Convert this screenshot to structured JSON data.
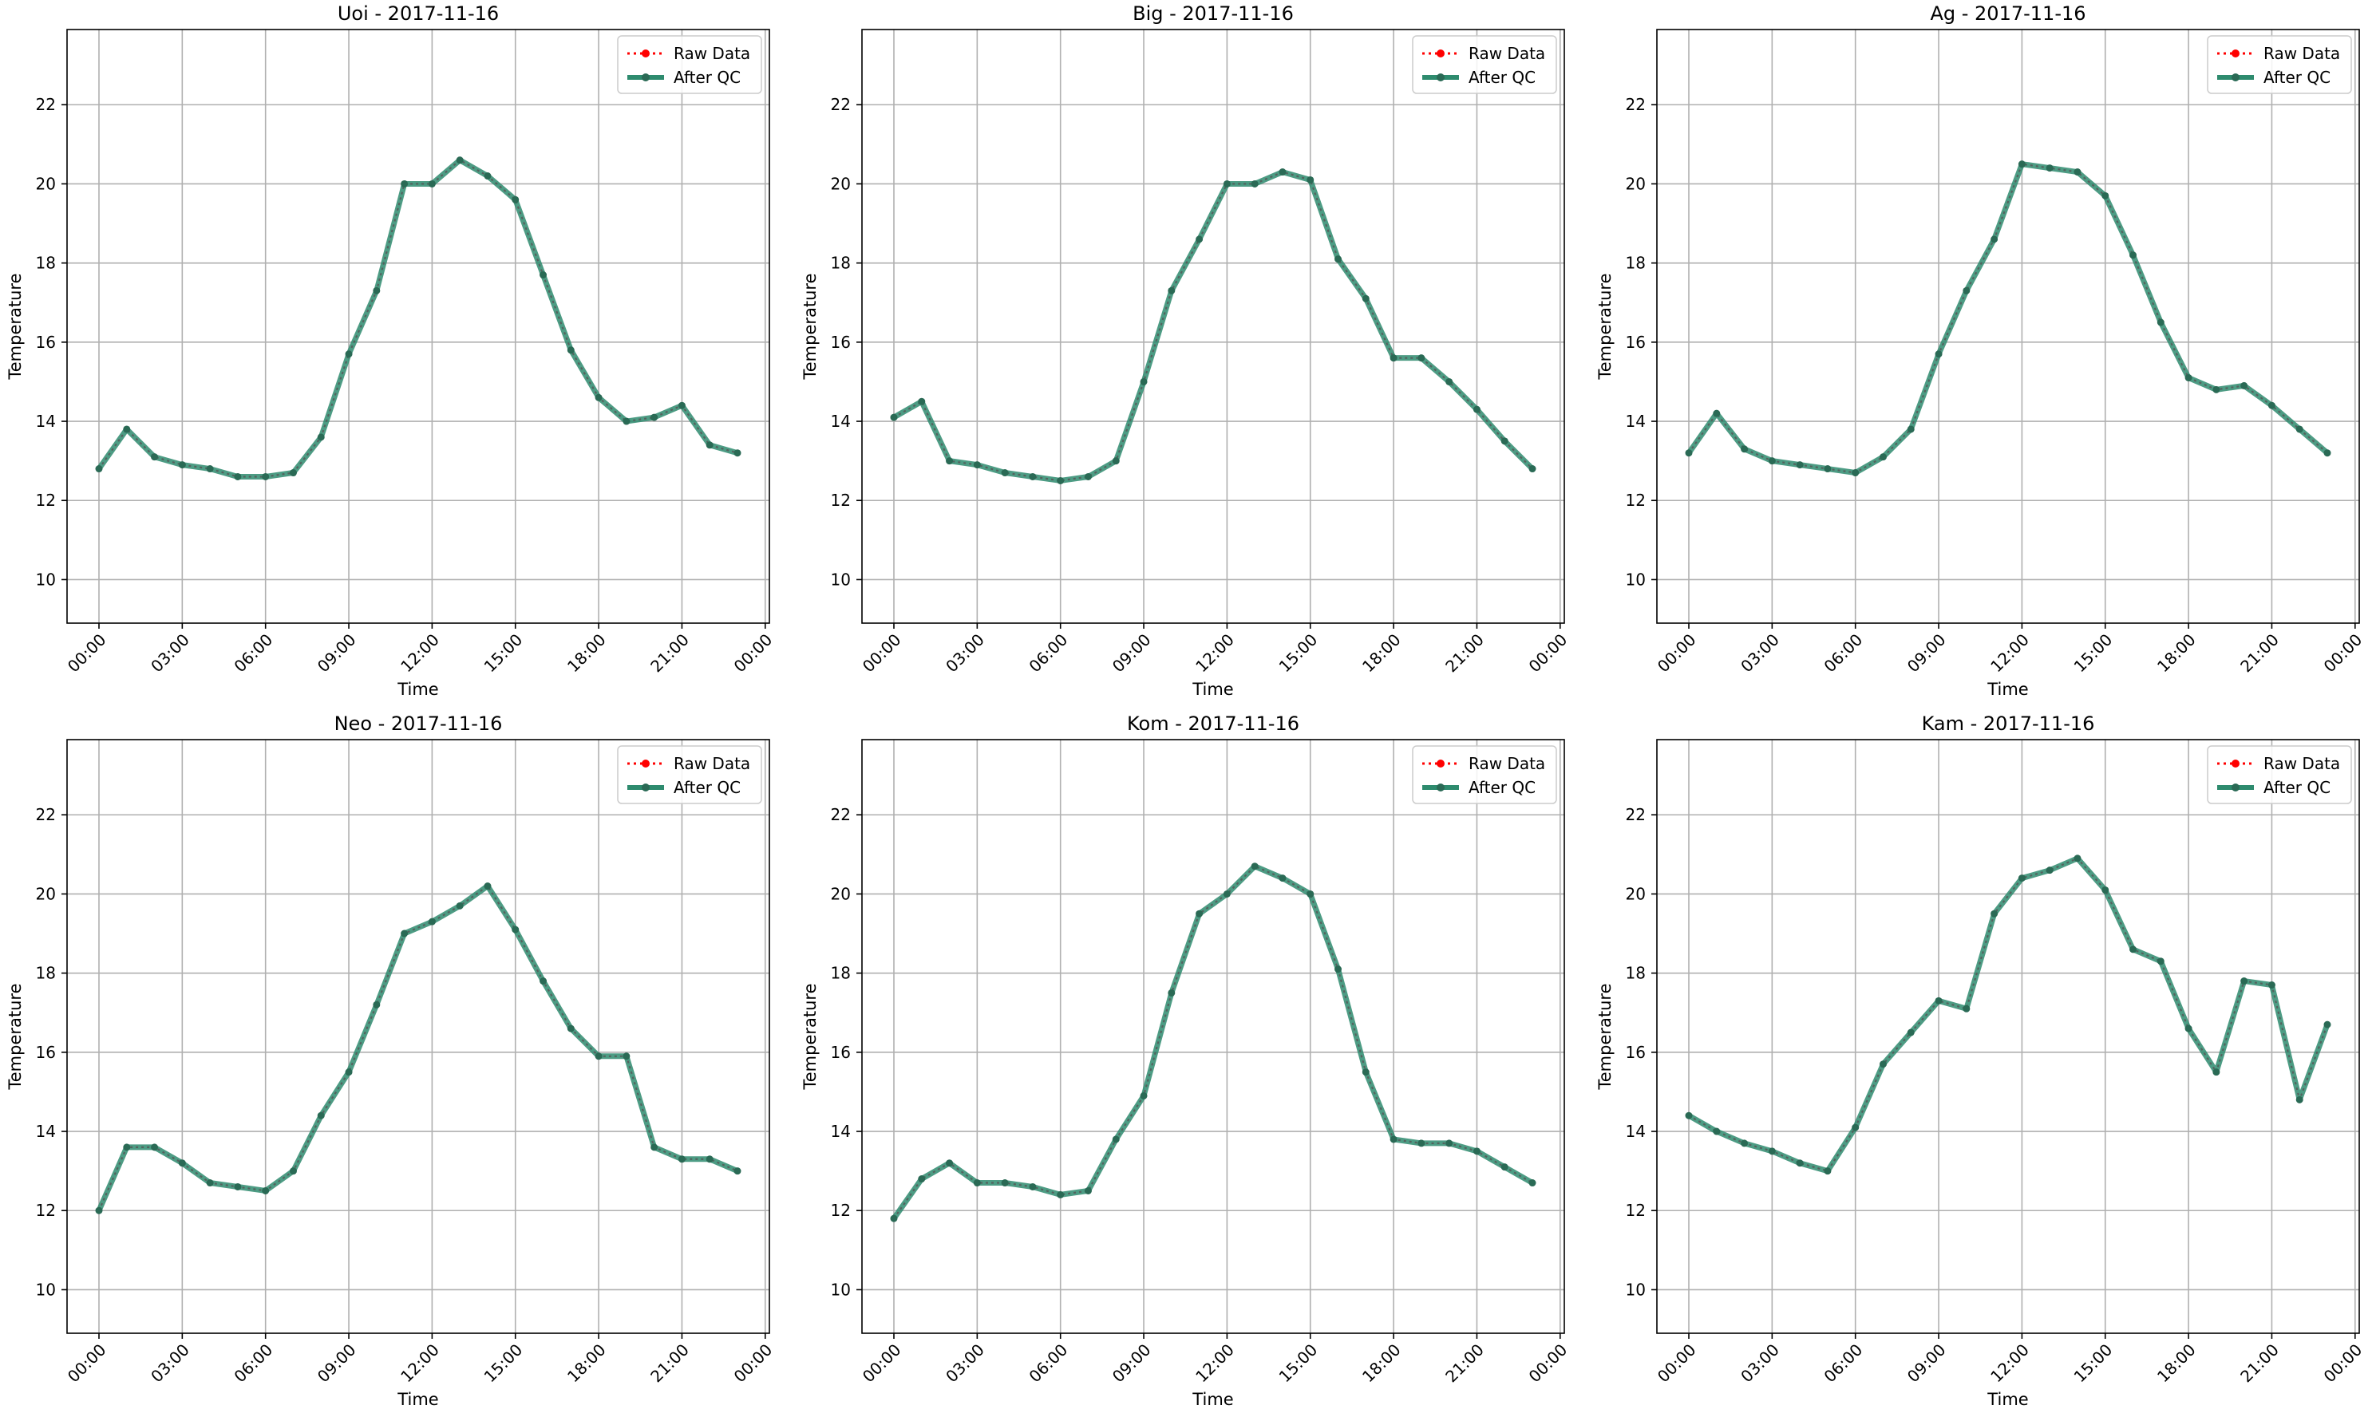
{
  "figure": {
    "legend_labels": {
      "raw": "Raw Data",
      "qc": "After QC"
    },
    "xlabel": "Time",
    "ylabel": "Temperature",
    "x_ticks": [
      "00:00",
      "03:00",
      "06:00",
      "09:00",
      "12:00",
      "15:00",
      "18:00",
      "21:00",
      "00:00"
    ],
    "y_ticks": [
      10,
      12,
      14,
      16,
      18,
      20,
      22
    ],
    "colors": {
      "raw": "#ff0000",
      "qc": "#2e8b6e",
      "grid": "#b0b0b0"
    }
  },
  "chart_data": [
    {
      "type": "line",
      "title": "Uoi - 2017-11-16",
      "xlabel": "Time",
      "ylabel": "Temperature",
      "xlim": [
        -1.15,
        24.15
      ],
      "ylim": [
        8.9,
        23.9
      ],
      "grid": true,
      "legend": "top-right",
      "x": [
        0,
        1,
        2,
        3,
        4,
        5,
        6,
        7,
        8,
        9,
        10,
        11,
        12,
        13,
        14,
        15,
        16,
        17,
        18,
        19,
        20,
        21,
        22,
        23
      ],
      "series": [
        {
          "name": "Raw Data",
          "values": [
            12.8,
            13.8,
            13.1,
            12.9,
            12.8,
            12.6,
            12.6,
            12.7,
            13.6,
            15.7,
            17.3,
            20.0,
            20.0,
            20.6,
            20.2,
            19.6,
            17.7,
            15.8,
            14.6,
            14.0,
            14.1,
            14.4,
            13.4,
            13.2
          ]
        },
        {
          "name": "After QC",
          "values": [
            12.8,
            13.8,
            13.1,
            12.9,
            12.8,
            12.6,
            12.6,
            12.7,
            13.6,
            15.7,
            17.3,
            20.0,
            20.0,
            20.6,
            20.2,
            19.6,
            17.7,
            15.8,
            14.6,
            14.0,
            14.1,
            14.4,
            13.4,
            13.2
          ]
        }
      ]
    },
    {
      "type": "line",
      "title": "Big - 2017-11-16",
      "xlabel": "Time",
      "ylabel": "Temperature",
      "xlim": [
        -1.15,
        24.15
      ],
      "ylim": [
        8.9,
        23.9
      ],
      "grid": true,
      "legend": "top-right",
      "x": [
        0,
        1,
        2,
        3,
        4,
        5,
        6,
        7,
        8,
        9,
        10,
        11,
        12,
        13,
        14,
        15,
        16,
        17,
        18,
        19,
        20,
        21,
        22,
        23
      ],
      "series": [
        {
          "name": "Raw Data",
          "values": [
            14.1,
            14.5,
            13.0,
            12.9,
            12.7,
            12.6,
            12.5,
            12.6,
            13.0,
            15.0,
            17.3,
            18.6,
            20.0,
            20.0,
            20.3,
            20.1,
            18.1,
            17.1,
            15.6,
            15.6,
            15.0,
            14.3,
            13.5,
            12.8
          ]
        },
        {
          "name": "After QC",
          "values": [
            14.1,
            14.5,
            13.0,
            12.9,
            12.7,
            12.6,
            12.5,
            12.6,
            13.0,
            15.0,
            17.3,
            18.6,
            20.0,
            20.0,
            20.3,
            20.1,
            18.1,
            17.1,
            15.6,
            15.6,
            15.0,
            14.3,
            13.5,
            12.8
          ]
        }
      ]
    },
    {
      "type": "line",
      "title": "Ag - 2017-11-16",
      "xlabel": "Time",
      "ylabel": "Temperature",
      "xlim": [
        -1.15,
        24.15
      ],
      "ylim": [
        8.9,
        23.9
      ],
      "grid": true,
      "legend": "top-right",
      "x": [
        0,
        1,
        2,
        3,
        4,
        5,
        6,
        7,
        8,
        9,
        10,
        11,
        12,
        13,
        14,
        15,
        16,
        17,
        18,
        19,
        20,
        21,
        22,
        23
      ],
      "series": [
        {
          "name": "Raw Data",
          "values": [
            13.2,
            14.2,
            13.3,
            13.0,
            12.9,
            12.8,
            12.7,
            13.1,
            13.8,
            15.7,
            17.3,
            18.6,
            20.5,
            20.4,
            20.3,
            19.7,
            18.2,
            16.5,
            15.1,
            14.8,
            14.9,
            14.4,
            13.8,
            13.2
          ]
        },
        {
          "name": "After QC",
          "values": [
            13.2,
            14.2,
            13.3,
            13.0,
            12.9,
            12.8,
            12.7,
            13.1,
            13.8,
            15.7,
            17.3,
            18.6,
            20.5,
            20.4,
            20.3,
            19.7,
            18.2,
            16.5,
            15.1,
            14.8,
            14.9,
            14.4,
            13.8,
            13.2
          ]
        }
      ]
    },
    {
      "type": "line",
      "title": "Neo - 2017-11-16",
      "xlabel": "Time",
      "ylabel": "Temperature",
      "xlim": [
        -1.15,
        24.15
      ],
      "ylim": [
        8.9,
        23.9
      ],
      "grid": true,
      "legend": "top-right",
      "x": [
        0,
        1,
        2,
        3,
        4,
        5,
        6,
        7,
        8,
        9,
        10,
        11,
        12,
        13,
        14,
        15,
        16,
        17,
        18,
        19,
        20,
        21,
        22,
        23
      ],
      "series": [
        {
          "name": "Raw Data",
          "values": [
            12.0,
            13.6,
            13.6,
            13.2,
            12.7,
            12.6,
            12.5,
            13.0,
            14.4,
            15.5,
            17.2,
            19.0,
            19.3,
            19.7,
            20.2,
            19.1,
            17.8,
            16.6,
            15.9,
            15.9,
            13.6,
            13.3,
            13.3,
            13.0
          ]
        },
        {
          "name": "After QC",
          "values": [
            12.0,
            13.6,
            13.6,
            13.2,
            12.7,
            12.6,
            12.5,
            13.0,
            14.4,
            15.5,
            17.2,
            19.0,
            19.3,
            19.7,
            20.2,
            19.1,
            17.8,
            16.6,
            15.9,
            15.9,
            13.6,
            13.3,
            13.3,
            13.0
          ]
        }
      ]
    },
    {
      "type": "line",
      "title": "Kom - 2017-11-16",
      "xlabel": "Time",
      "ylabel": "Temperature",
      "xlim": [
        -1.15,
        24.15
      ],
      "ylim": [
        8.9,
        23.9
      ],
      "grid": true,
      "legend": "top-right",
      "x": [
        0,
        1,
        2,
        3,
        4,
        5,
        6,
        7,
        8,
        9,
        10,
        11,
        12,
        13,
        14,
        15,
        16,
        17,
        18,
        19,
        20,
        21,
        22,
        23
      ],
      "series": [
        {
          "name": "Raw Data",
          "values": [
            11.8,
            12.8,
            13.2,
            12.7,
            12.7,
            12.6,
            12.4,
            12.5,
            13.8,
            14.9,
            17.5,
            19.5,
            20.0,
            20.7,
            20.4,
            20.0,
            18.1,
            15.5,
            13.8,
            13.7,
            13.7,
            13.5,
            13.1,
            12.7
          ]
        },
        {
          "name": "After QC",
          "values": [
            11.8,
            12.8,
            13.2,
            12.7,
            12.7,
            12.6,
            12.4,
            12.5,
            13.8,
            14.9,
            17.5,
            19.5,
            20.0,
            20.7,
            20.4,
            20.0,
            18.1,
            15.5,
            13.8,
            13.7,
            13.7,
            13.5,
            13.1,
            12.7
          ]
        }
      ]
    },
    {
      "type": "line",
      "title": "Kam - 2017-11-16",
      "xlabel": "Time",
      "ylabel": "Temperature",
      "xlim": [
        -1.15,
        24.15
      ],
      "ylim": [
        8.9,
        23.9
      ],
      "grid": true,
      "legend": "top-right",
      "x": [
        0,
        1,
        2,
        3,
        4,
        5,
        6,
        7,
        8,
        9,
        10,
        11,
        12,
        13,
        14,
        15,
        16,
        17,
        18,
        19,
        20,
        21,
        22,
        23
      ],
      "series": [
        {
          "name": "Raw Data",
          "values": [
            14.4,
            14.0,
            13.7,
            13.5,
            13.2,
            13.0,
            14.1,
            15.7,
            16.5,
            17.3,
            17.1,
            19.5,
            20.4,
            20.6,
            20.9,
            20.1,
            18.6,
            18.3,
            16.6,
            15.5,
            17.8,
            17.7,
            14.8,
            16.7
          ]
        },
        {
          "name": "After QC",
          "values": [
            14.4,
            14.0,
            13.7,
            13.5,
            13.2,
            13.0,
            14.1,
            15.7,
            16.5,
            17.3,
            17.1,
            19.5,
            20.4,
            20.6,
            20.9,
            20.1,
            18.6,
            18.3,
            16.6,
            15.5,
            17.8,
            17.7,
            14.8,
            16.7
          ]
        }
      ]
    }
  ]
}
